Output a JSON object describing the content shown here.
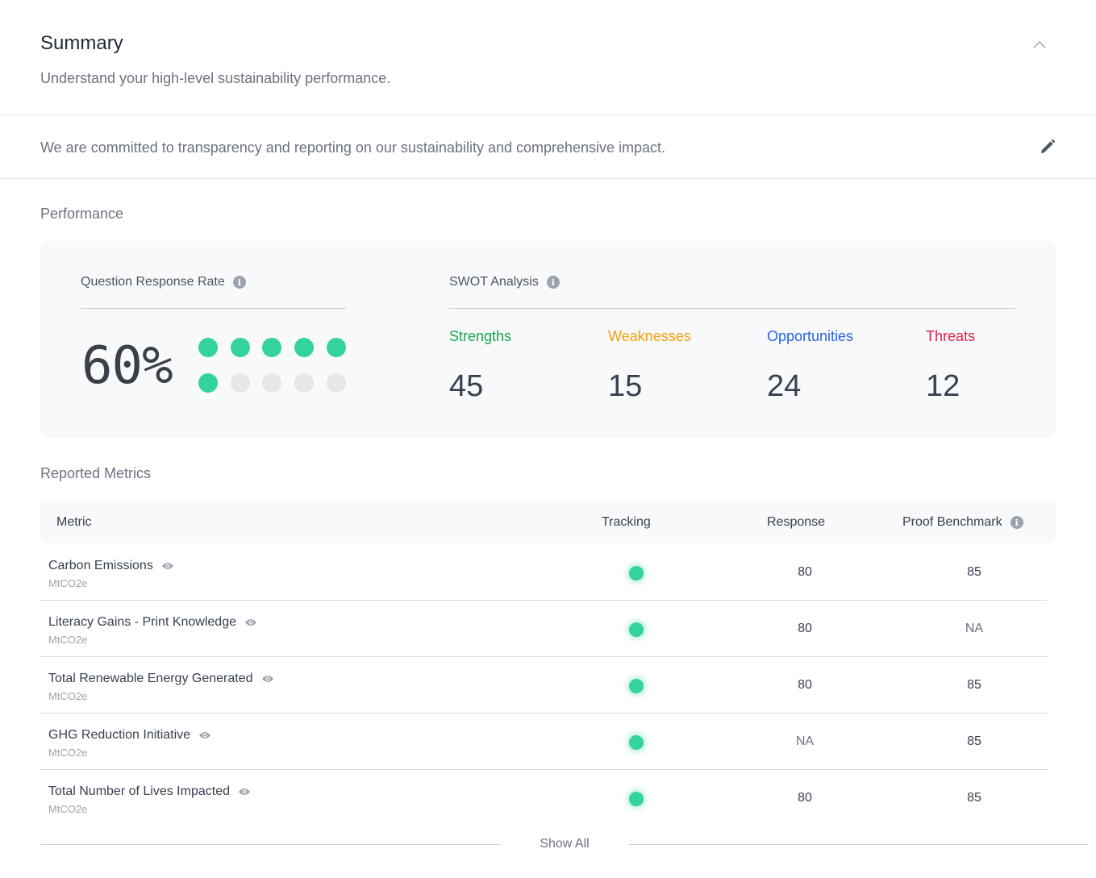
{
  "summary": {
    "title": "Summary",
    "subtitle": "Understand your high-level sustainability performance.",
    "collapse_icon": "chevron-up-icon"
  },
  "statement": {
    "text": "We are committed to transparency and reporting on our sustainability and comprehensive impact.",
    "edit_icon": "pencil-icon"
  },
  "performance": {
    "label": "Performance",
    "response_rate": {
      "label": "Question Response Rate",
      "value": "60%",
      "filled_dots": 6,
      "total_dots": 10
    },
    "swot": {
      "label": "SWOT Analysis",
      "items": [
        {
          "name": "Strengths",
          "value": "45",
          "color": "#16a34a"
        },
        {
          "name": "Weaknesses",
          "value": "15",
          "color": "#f59e0b"
        },
        {
          "name": "Opportunities",
          "value": "24",
          "color": "#2563eb"
        },
        {
          "name": "Threats",
          "value": "12",
          "color": "#e11d48"
        }
      ]
    }
  },
  "metrics": {
    "label": "Reported Metrics",
    "columns": [
      "Metric",
      "Tracking",
      "Response",
      "Proof Benchmark"
    ],
    "rows": [
      {
        "name": "Carbon Emissions",
        "unit": "MtCO2e",
        "tracking": "on",
        "response": "80",
        "benchmark": "85"
      },
      {
        "name": "Literacy Gains - Print Knowledge",
        "unit": "MtCO2e",
        "tracking": "on",
        "response": "80",
        "benchmark": "NA"
      },
      {
        "name": "Total Renewable Energy Generated",
        "unit": "MtCO2e",
        "tracking": "on",
        "response": "80",
        "benchmark": "85"
      },
      {
        "name": "GHG Reduction Initiative",
        "unit": "MtCO2e",
        "tracking": "on",
        "response": "NA",
        "benchmark": "85"
      },
      {
        "name": "Total Number of Lives Impacted",
        "unit": "MtCO2e",
        "tracking": "on",
        "response": "80",
        "benchmark": "85"
      }
    ],
    "show_all": "Show All"
  }
}
